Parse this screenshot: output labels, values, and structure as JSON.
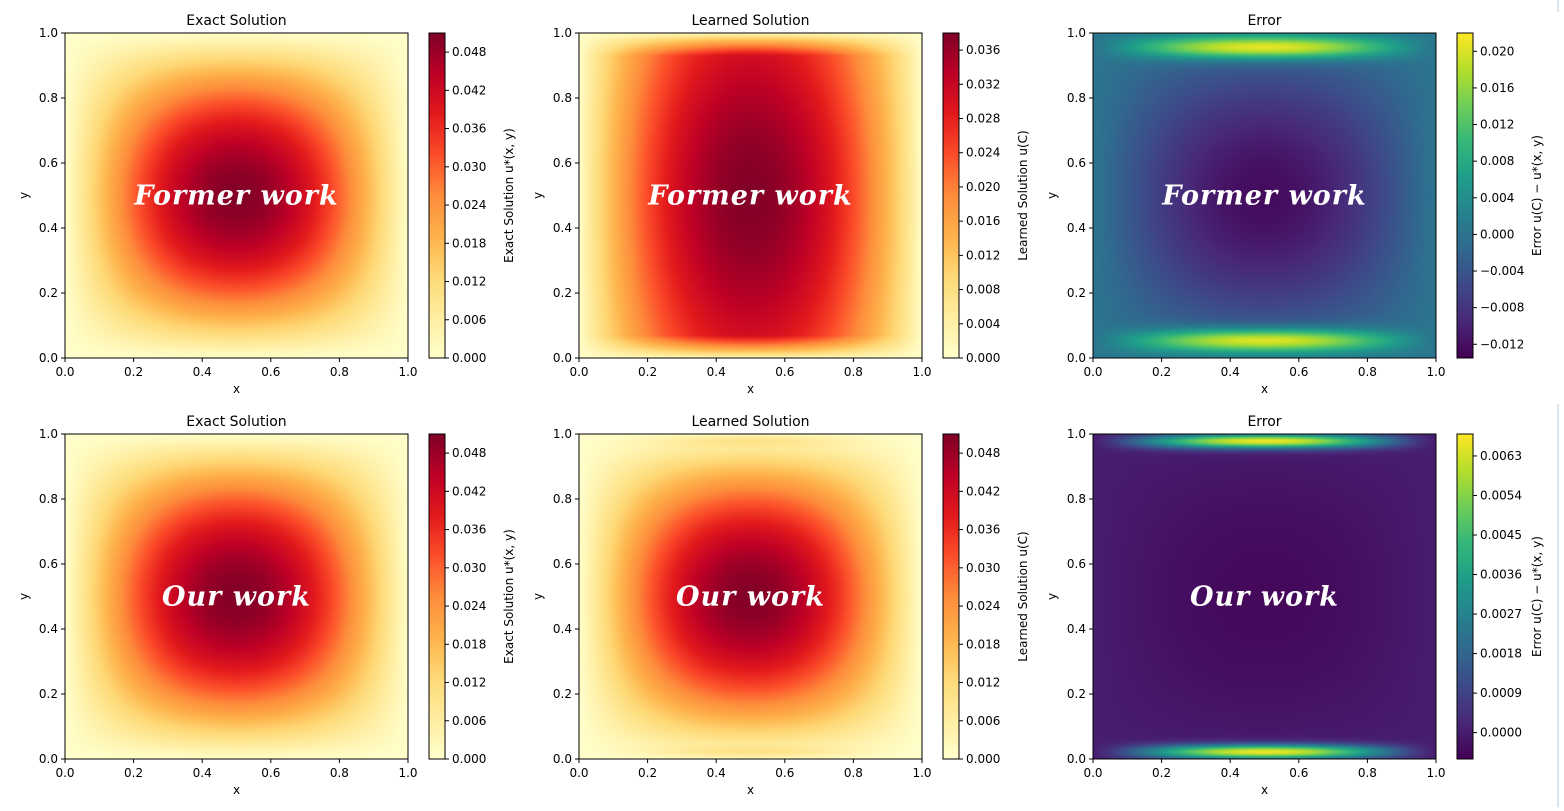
{
  "chart_data": [
    {
      "type": "heatmap",
      "title": "Exact Solution",
      "xlabel": "x",
      "ylabel": "y",
      "xlim": [
        0.0,
        1.0
      ],
      "ylim": [
        0.0,
        1.0
      ],
      "xticks": [
        "0.0",
        "0.2",
        "0.4",
        "0.6",
        "0.8",
        "1.0"
      ],
      "yticks": [
        "0.0",
        "0.2",
        "0.4",
        "0.6",
        "0.8",
        "1.0"
      ],
      "colormap": "YlOrRd",
      "colorbar_label": "Exact Solution u*(x, y)",
      "colorbar_range": [
        0.0,
        0.051
      ],
      "colorbar_ticks": [
        "0.000",
        "0.006",
        "0.012",
        "0.018",
        "0.024",
        "0.030",
        "0.036",
        "0.042",
        "0.048"
      ],
      "annotation": "Former work",
      "field": "exact",
      "min_value": 0.0,
      "max_value": 0.051
    },
    {
      "type": "heatmap",
      "title": "Learned Solution",
      "xlabel": "x",
      "ylabel": "y",
      "xlim": [
        0.0,
        1.0
      ],
      "ylim": [
        0.0,
        1.0
      ],
      "xticks": [
        "0.0",
        "0.2",
        "0.4",
        "0.6",
        "0.8",
        "1.0"
      ],
      "yticks": [
        "0.0",
        "0.2",
        "0.4",
        "0.6",
        "0.8",
        "1.0"
      ],
      "colormap": "YlOrRd",
      "colorbar_label": "Learned Solution u(C)",
      "colorbar_range": [
        0.0,
        0.038
      ],
      "colorbar_ticks": [
        "0.000",
        "0.004",
        "0.008",
        "0.012",
        "0.016",
        "0.020",
        "0.024",
        "0.028",
        "0.032",
        "0.036"
      ],
      "annotation": "Former work",
      "field": "learned_former",
      "min_value": 0.0,
      "max_value": 0.038
    },
    {
      "type": "heatmap",
      "title": "Error",
      "xlabel": "x",
      "ylabel": "y",
      "xlim": [
        0.0,
        1.0
      ],
      "ylim": [
        0.0,
        1.0
      ],
      "xticks": [
        "0.0",
        "0.2",
        "0.4",
        "0.6",
        "0.8",
        "1.0"
      ],
      "yticks": [
        "0.0",
        "0.2",
        "0.4",
        "0.6",
        "0.8",
        "1.0"
      ],
      "colormap": "viridis",
      "colorbar_label": "Error u(C) − u*(x, y)",
      "colorbar_range": [
        -0.0135,
        0.022
      ],
      "colorbar_ticks": [
        "−0.012",
        "−0.008",
        "−0.004",
        "0.000",
        "0.004",
        "0.008",
        "0.012",
        "0.016",
        "0.020"
      ],
      "annotation": "Former work",
      "field": "error_former",
      "min_value": -0.0135,
      "max_value": 0.022
    },
    {
      "type": "heatmap",
      "title": "Exact Solution",
      "xlabel": "x",
      "ylabel": "y",
      "xlim": [
        0.0,
        1.0
      ],
      "ylim": [
        0.0,
        1.0
      ],
      "xticks": [
        "0.0",
        "0.2",
        "0.4",
        "0.6",
        "0.8",
        "1.0"
      ],
      "yticks": [
        "0.0",
        "0.2",
        "0.4",
        "0.6",
        "0.8",
        "1.0"
      ],
      "colormap": "YlOrRd",
      "colorbar_label": "Exact Solution u*(x, y)",
      "colorbar_range": [
        0.0,
        0.051
      ],
      "colorbar_ticks": [
        "0.000",
        "0.006",
        "0.012",
        "0.018",
        "0.024",
        "0.030",
        "0.036",
        "0.042",
        "0.048"
      ],
      "annotation": "Our work",
      "field": "exact",
      "min_value": 0.0,
      "max_value": 0.051
    },
    {
      "type": "heatmap",
      "title": "Learned Solution",
      "xlabel": "x",
      "ylabel": "y",
      "xlim": [
        0.0,
        1.0
      ],
      "ylim": [
        0.0,
        1.0
      ],
      "xticks": [
        "0.0",
        "0.2",
        "0.4",
        "0.6",
        "0.8",
        "1.0"
      ],
      "yticks": [
        "0.0",
        "0.2",
        "0.4",
        "0.6",
        "0.8",
        "1.0"
      ],
      "colormap": "YlOrRd",
      "colorbar_label": "Learned Solution u(C)",
      "colorbar_range": [
        0.0,
        0.051
      ],
      "colorbar_ticks": [
        "0.000",
        "0.006",
        "0.012",
        "0.018",
        "0.024",
        "0.030",
        "0.036",
        "0.042",
        "0.048"
      ],
      "annotation": "Our work",
      "field": "learned_ours",
      "min_value": 0.0,
      "max_value": 0.051
    },
    {
      "type": "heatmap",
      "title": "Error",
      "xlabel": "x",
      "ylabel": "y",
      "xlim": [
        0.0,
        1.0
      ],
      "ylim": [
        0.0,
        1.0
      ],
      "xticks": [
        "0.0",
        "0.2",
        "0.4",
        "0.6",
        "0.8",
        "1.0"
      ],
      "yticks": [
        "0.0",
        "0.2",
        "0.4",
        "0.6",
        "0.8",
        "1.0"
      ],
      "colormap": "viridis",
      "colorbar_label": "Error u(C) − u*(x, y)",
      "colorbar_range": [
        -0.0006,
        0.0068
      ],
      "colorbar_ticks": [
        "0.0000",
        "0.0009",
        "0.0018",
        "0.0027",
        "0.0036",
        "0.0045",
        "0.0054",
        "0.0063"
      ],
      "annotation": "Our work",
      "field": "error_ours",
      "min_value": -0.0006,
      "max_value": 0.0068
    }
  ],
  "colors": {
    "ylorrd": [
      "#ffffcc",
      "#ffeda0",
      "#fed976",
      "#feb24c",
      "#fd8d3c",
      "#fc4e2a",
      "#e31a1c",
      "#bd0026",
      "#800026"
    ],
    "viridis": [
      "#440154",
      "#482878",
      "#3e4989",
      "#31688e",
      "#26828e",
      "#1f9e89",
      "#35b779",
      "#6ece58",
      "#b5de2b",
      "#fde725"
    ]
  }
}
